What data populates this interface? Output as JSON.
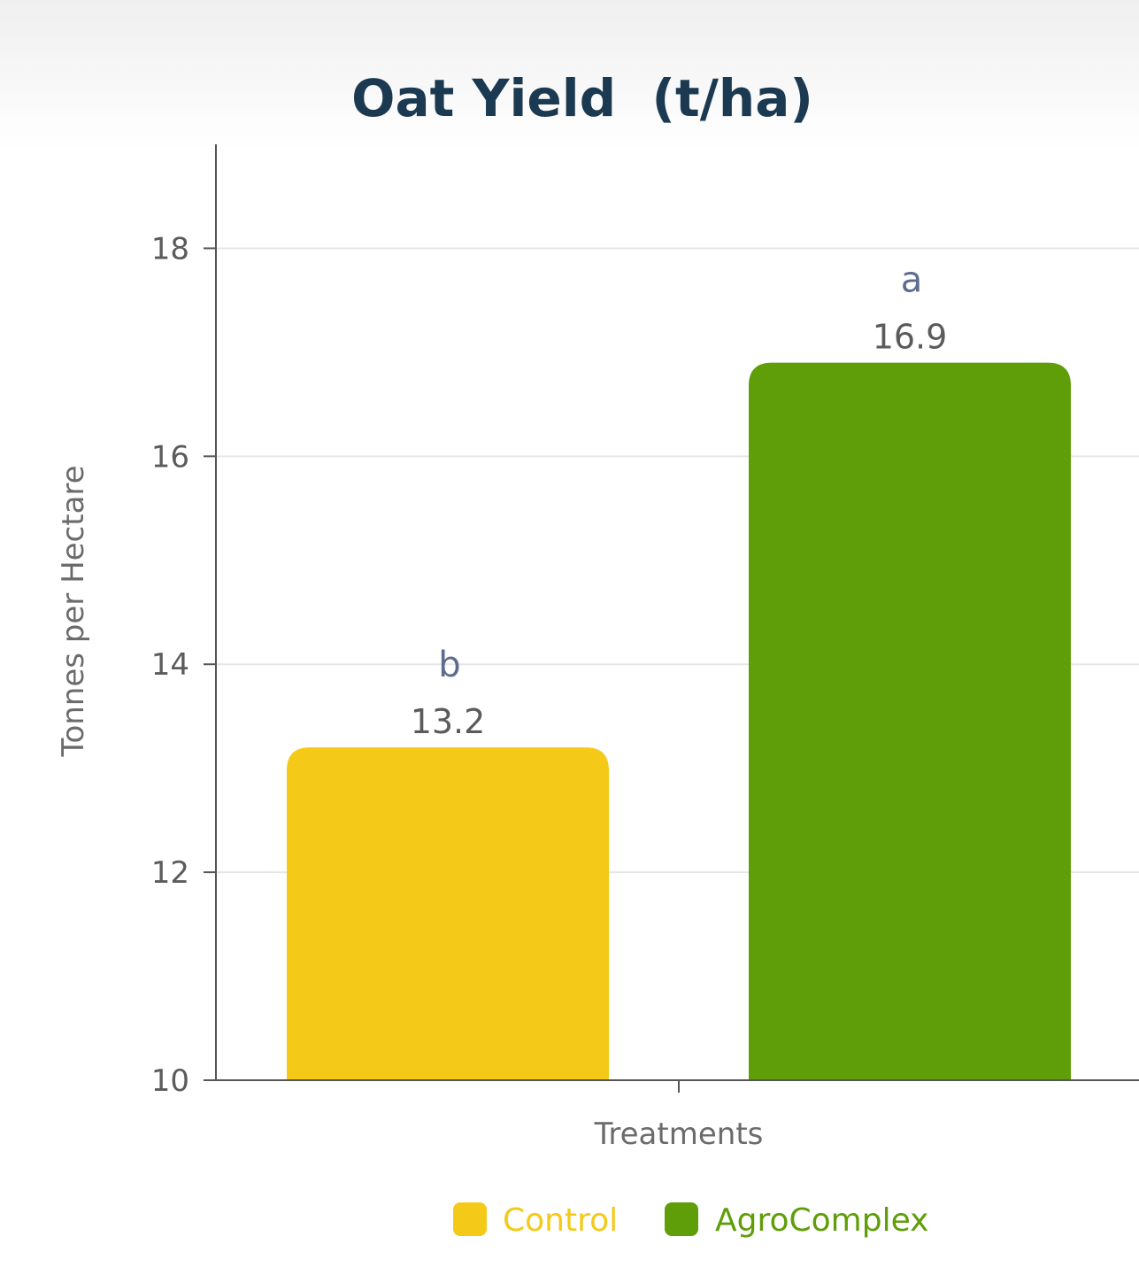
{
  "chart_data": {
    "type": "bar",
    "title": "Oat Yield  (t/ha)",
    "xlabel": "Treatments",
    "ylabel": "Tonnes per Hectare",
    "ylim": [
      10,
      19
    ],
    "yticks": [
      10,
      12,
      14,
      16,
      18
    ],
    "grid": true,
    "legend_position": "bottom",
    "series": [
      {
        "name": "Control",
        "value": 13.2,
        "value_label": "13.2",
        "significance": "b",
        "color": "#f5c918"
      },
      {
        "name": "AgroComplex",
        "value": 16.9,
        "value_label": "16.9",
        "significance": "a",
        "color": "#5f9e08"
      }
    ]
  }
}
